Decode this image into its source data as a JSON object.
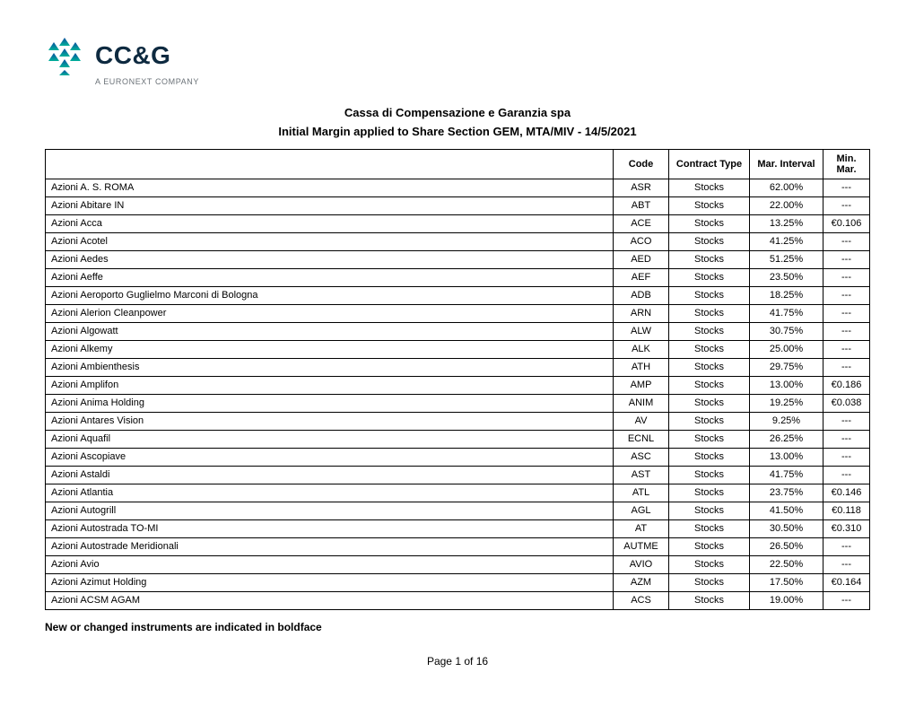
{
  "logo": {
    "main": "CC&G",
    "sub": "A EURONEXT COMPANY",
    "colors": {
      "logo_text": "#0e2a40",
      "logo_sub": "#6b7278",
      "gradient_top": "#0a4d9f",
      "gradient_bottom": "#00b19a"
    }
  },
  "header": {
    "line1": "Cassa di Compensazione e Garanzia spa",
    "line2": "Initial Margin applied to Share Section  GEM, MTA/MIV  -  14/5/2021"
  },
  "table": {
    "columns": {
      "name": "",
      "code": "Code",
      "ctype": "Contract Type",
      "marint": "Mar. Interval",
      "minmar": "Min. Mar."
    },
    "rows": [
      {
        "name": "Azioni A. S. ROMA",
        "code": "ASR",
        "ctype": "Stocks",
        "marint": "62.00%",
        "minmar": "---"
      },
      {
        "name": "Azioni Abitare IN",
        "code": "ABT",
        "ctype": "Stocks",
        "marint": "22.00%",
        "minmar": "---"
      },
      {
        "name": "Azioni Acca",
        "code": "ACE",
        "ctype": "Stocks",
        "marint": "13.25%",
        "minmar": "€0.106"
      },
      {
        "name": "Azioni Acotel",
        "code": "ACO",
        "ctype": "Stocks",
        "marint": "41.25%",
        "minmar": "---"
      },
      {
        "name": "Azioni Aedes",
        "code": "AED",
        "ctype": "Stocks",
        "marint": "51.25%",
        "minmar": "---"
      },
      {
        "name": "Azioni Aeffe",
        "code": "AEF",
        "ctype": "Stocks",
        "marint": "23.50%",
        "minmar": "---"
      },
      {
        "name": "Azioni Aeroporto Guglielmo Marconi di Bologna",
        "code": "ADB",
        "ctype": "Stocks",
        "marint": "18.25%",
        "minmar": "---"
      },
      {
        "name": "Azioni Alerion Cleanpower",
        "code": "ARN",
        "ctype": "Stocks",
        "marint": "41.75%",
        "minmar": "---"
      },
      {
        "name": "Azioni Algowatt",
        "code": "ALW",
        "ctype": "Stocks",
        "marint": "30.75%",
        "minmar": "---"
      },
      {
        "name": "Azioni Alkemy",
        "code": "ALK",
        "ctype": "Stocks",
        "marint": "25.00%",
        "minmar": "---"
      },
      {
        "name": "Azioni Ambienthesis",
        "code": "ATH",
        "ctype": "Stocks",
        "marint": "29.75%",
        "minmar": "---"
      },
      {
        "name": "Azioni Amplifon",
        "code": "AMP",
        "ctype": "Stocks",
        "marint": "13.00%",
        "minmar": "€0.186"
      },
      {
        "name": "Azioni Anima Holding",
        "code": "ANIM",
        "ctype": "Stocks",
        "marint": "19.25%",
        "minmar": "€0.038"
      },
      {
        "name": "Azioni Antares Vision",
        "code": "AV",
        "ctype": "Stocks",
        "marint": "9.25%",
        "minmar": "---"
      },
      {
        "name": "Azioni Aquafil",
        "code": "ECNL",
        "ctype": "Stocks",
        "marint": "26.25%",
        "minmar": "---"
      },
      {
        "name": "Azioni Ascopiave",
        "code": "ASC",
        "ctype": "Stocks",
        "marint": "13.00%",
        "minmar": "---"
      },
      {
        "name": "Azioni Astaldi",
        "code": "AST",
        "ctype": "Stocks",
        "marint": "41.75%",
        "minmar": "---"
      },
      {
        "name": "Azioni Atlantia",
        "code": "ATL",
        "ctype": "Stocks",
        "marint": "23.75%",
        "minmar": "€0.146"
      },
      {
        "name": "Azioni Autogrill",
        "code": "AGL",
        "ctype": "Stocks",
        "marint": "41.50%",
        "minmar": "€0.118"
      },
      {
        "name": "Azioni Autostrada TO-MI",
        "code": "AT",
        "ctype": "Stocks",
        "marint": "30.50%",
        "minmar": "€0.310"
      },
      {
        "name": "Azioni Autostrade Meridionali",
        "code": "AUTME",
        "ctype": "Stocks",
        "marint": "26.50%",
        "minmar": "---"
      },
      {
        "name": "Azioni Avio",
        "code": "AVIO",
        "ctype": "Stocks",
        "marint": "22.50%",
        "minmar": "---"
      },
      {
        "name": "Azioni Azimut Holding",
        "code": "AZM",
        "ctype": "Stocks",
        "marint": "17.50%",
        "minmar": "€0.164"
      },
      {
        "name": "Azioni ACSM AGAM",
        "code": "ACS",
        "ctype": "Stocks",
        "marint": "19.00%",
        "minmar": "---"
      }
    ]
  },
  "footnote": "New or changed instruments are indicated in boldface",
  "pager": {
    "prefix": "Page ",
    "current": "1",
    "of": " of ",
    "total": "16"
  }
}
